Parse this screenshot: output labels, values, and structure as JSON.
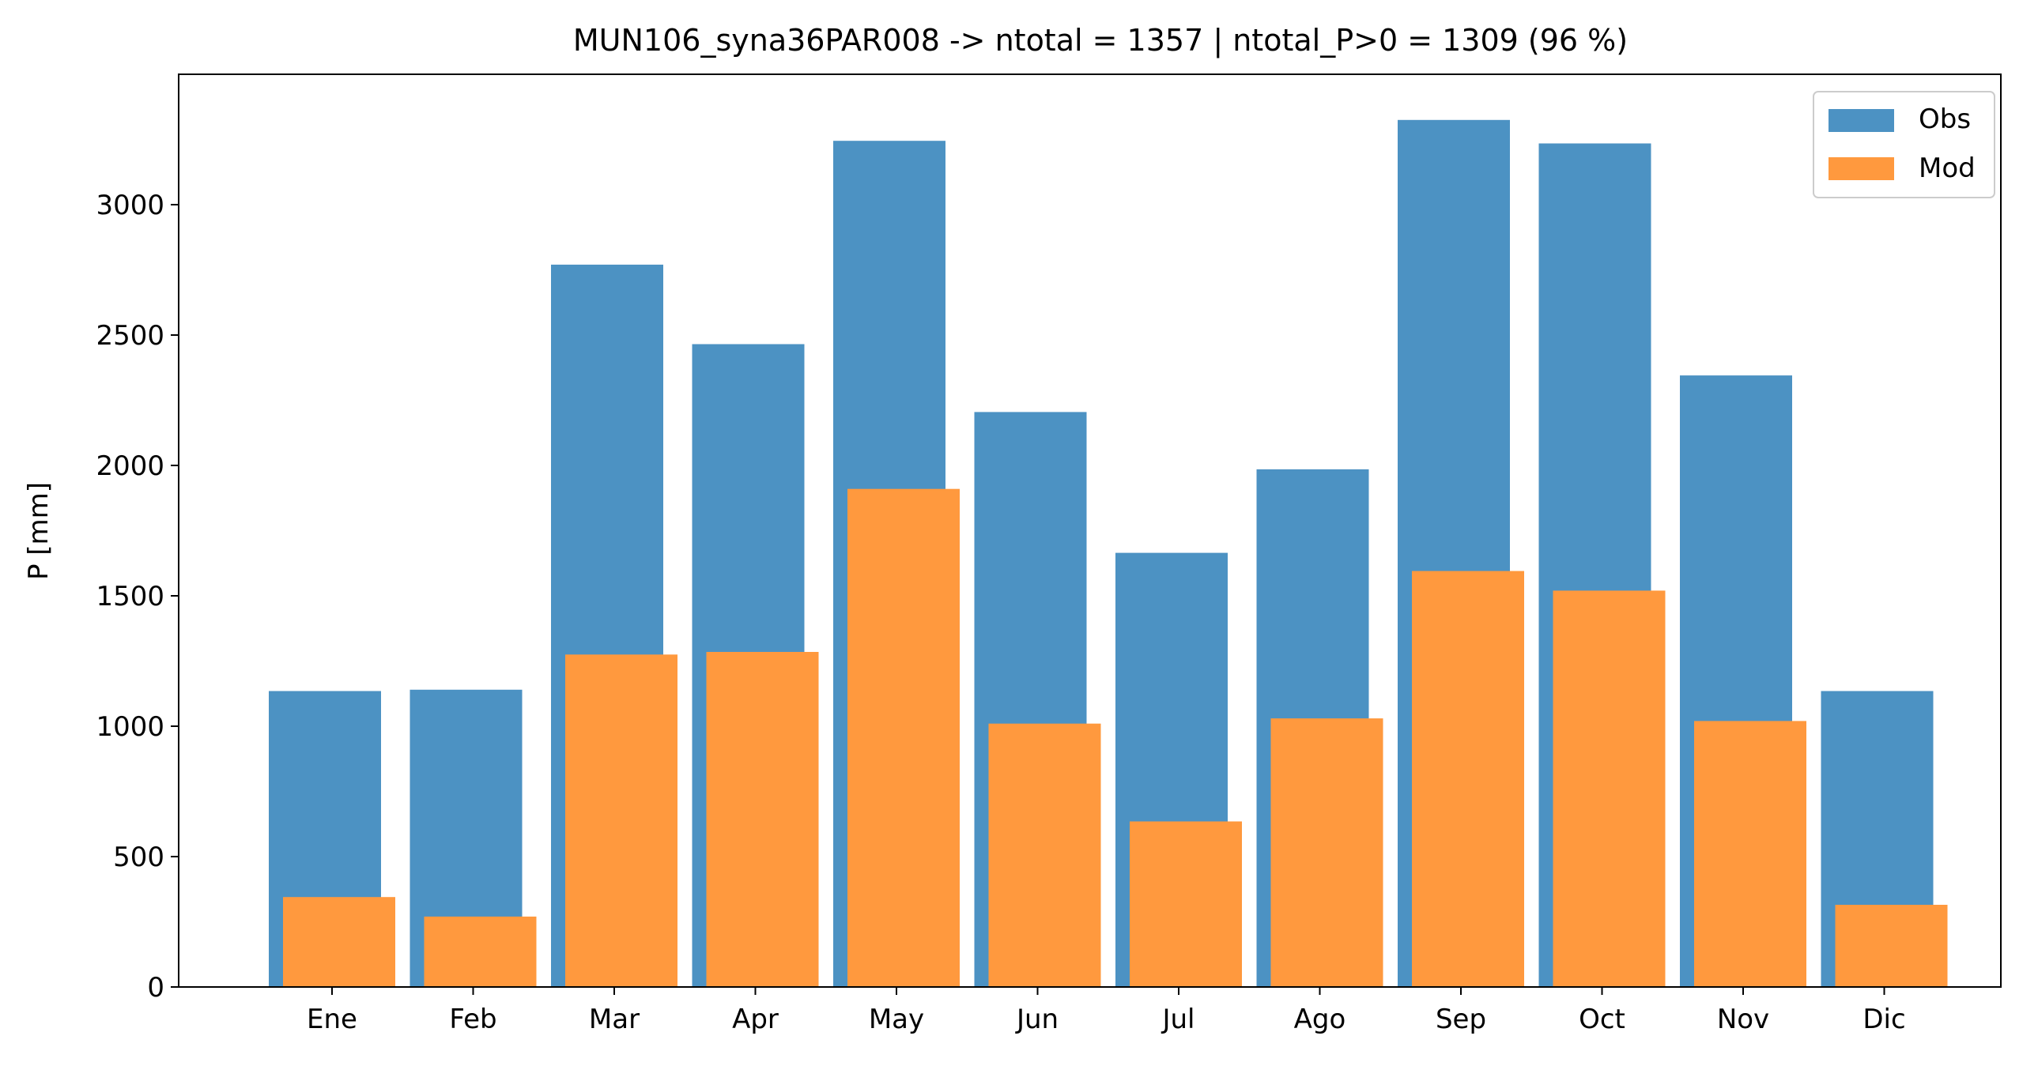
{
  "chart_data": {
    "type": "bar",
    "title": "MUN106_syna36PAR008 -> ntotal = 1357 | ntotal_P>0 = 1309 (96 %)",
    "xlabel": "",
    "ylabel": "P [mm]",
    "categories": [
      "Ene",
      "Feb",
      "Mar",
      "Apr",
      "May",
      "Jun",
      "Jul",
      "Ago",
      "Sep",
      "Oct",
      "Nov",
      "Dic"
    ],
    "yticks": [
      0,
      500,
      1000,
      1500,
      2000,
      2500,
      3000
    ],
    "ylim": [
      0,
      3500
    ],
    "series": [
      {
        "name": "Obs",
        "color": "#4c92c3",
        "values": [
          1135,
          1140,
          2770,
          2465,
          3245,
          2205,
          1665,
          1985,
          3325,
          3235,
          2345,
          1135
        ]
      },
      {
        "name": "Mod",
        "color": "#ff993e",
        "values": [
          345,
          270,
          1275,
          1285,
          1910,
          1010,
          635,
          1030,
          1595,
          1520,
          1020,
          315
        ]
      }
    ],
    "legend": {
      "position": "top-right"
    },
    "grid": false
  }
}
